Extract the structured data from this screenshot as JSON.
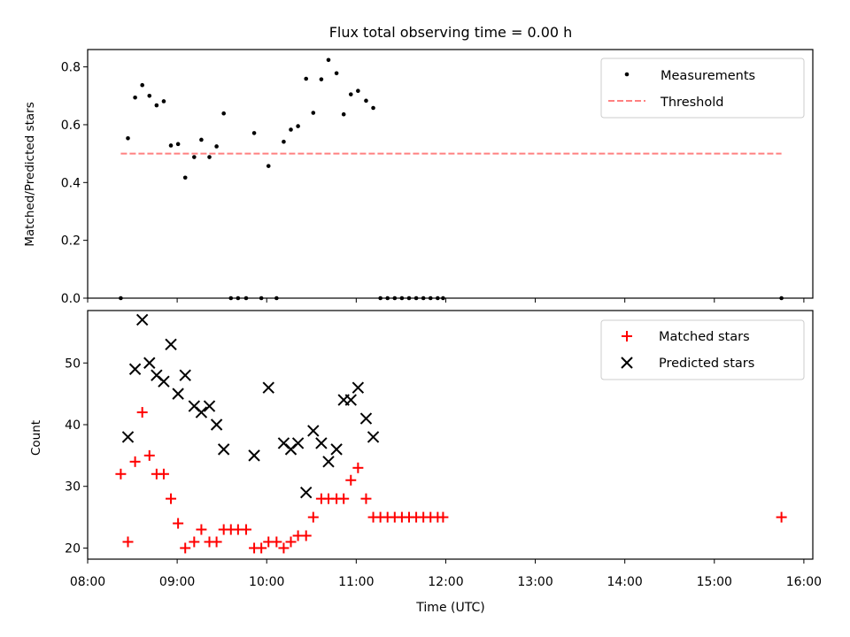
{
  "chart_data": [
    {
      "type": "scatter",
      "title": "Flux total observing time = 0.00 h",
      "xlabel": "",
      "ylabel": "Matched/Predicted stars",
      "x_unit": "hours (UTC)",
      "xlim": [
        8.0,
        16.1
      ],
      "ylim": [
        0.0,
        0.86
      ],
      "yticks": [
        0.0,
        0.2,
        0.4,
        0.6,
        0.8
      ],
      "ytick_labels": [
        "0.0",
        "0.2",
        "0.4",
        "0.6",
        "0.8"
      ],
      "legend_position": "top-right",
      "series": [
        {
          "name": "Measurements",
          "marker": "dot",
          "color": "#000000",
          "points": [
            [
              8.37,
              0.0
            ],
            [
              8.45,
              0.553
            ],
            [
              8.53,
              0.694
            ],
            [
              8.61,
              0.737
            ],
            [
              8.69,
              0.7
            ],
            [
              8.77,
              0.667
            ],
            [
              8.85,
              0.681
            ],
            [
              8.93,
              0.528
            ],
            [
              9.01,
              0.533
            ],
            [
              9.09,
              0.417
            ],
            [
              9.19,
              0.488
            ],
            [
              9.27,
              0.548
            ],
            [
              9.36,
              0.488
            ],
            [
              9.44,
              0.525
            ],
            [
              9.52,
              0.639
            ],
            [
              9.6,
              0.0
            ],
            [
              9.68,
              0.0
            ],
            [
              9.77,
              0.0
            ],
            [
              9.86,
              0.571
            ],
            [
              9.94,
              0.0
            ],
            [
              10.02,
              0.457
            ],
            [
              10.11,
              0.0
            ],
            [
              10.19,
              0.541
            ],
            [
              10.27,
              0.583
            ],
            [
              10.35,
              0.595
            ],
            [
              10.44,
              0.759
            ],
            [
              10.52,
              0.641
            ],
            [
              10.61,
              0.757
            ],
            [
              10.69,
              0.824
            ],
            [
              10.78,
              0.778
            ],
            [
              10.86,
              0.636
            ],
            [
              10.94,
              0.705
            ],
            [
              11.02,
              0.717
            ],
            [
              11.11,
              0.683
            ],
            [
              11.19,
              0.658
            ],
            [
              11.27,
              0.0
            ],
            [
              11.35,
              0.0
            ],
            [
              11.43,
              0.0
            ],
            [
              11.51,
              0.0
            ],
            [
              11.59,
              0.0
            ],
            [
              11.67,
              0.0
            ],
            [
              11.75,
              0.0
            ],
            [
              11.83,
              0.0
            ],
            [
              11.91,
              0.0
            ],
            [
              11.97,
              0.0
            ],
            [
              15.75,
              0.0
            ]
          ]
        },
        {
          "name": "Threshold",
          "line": "dashed",
          "color": "#ff8080",
          "points": [
            [
              8.37,
              0.5
            ],
            [
              15.75,
              0.5
            ]
          ]
        }
      ]
    },
    {
      "type": "scatter",
      "title": "",
      "xlabel": "Time (UTC)",
      "ylabel": "Count",
      "x_unit": "hours (UTC)",
      "xlim": [
        8.0,
        16.1
      ],
      "ylim": [
        18.2,
        58.5
      ],
      "yticks": [
        20,
        30,
        40,
        50
      ],
      "ytick_labels": [
        "20",
        "30",
        "40",
        "50"
      ],
      "xticks": [
        8,
        9,
        10,
        11,
        12,
        13,
        14,
        15,
        16
      ],
      "xtick_labels": [
        "08:00",
        "09:00",
        "10:00",
        "11:00",
        "12:00",
        "13:00",
        "14:00",
        "15:00",
        "16:00"
      ],
      "legend_position": "top-right",
      "series": [
        {
          "name": "Matched stars",
          "marker": "plus",
          "color": "#ff0000",
          "points": [
            [
              8.37,
              32
            ],
            [
              8.45,
              21
            ],
            [
              8.53,
              34
            ],
            [
              8.61,
              42
            ],
            [
              8.69,
              35
            ],
            [
              8.77,
              32
            ],
            [
              8.85,
              32
            ],
            [
              8.93,
              28
            ],
            [
              9.01,
              24
            ],
            [
              9.09,
              20
            ],
            [
              9.19,
              21
            ],
            [
              9.27,
              23
            ],
            [
              9.36,
              21
            ],
            [
              9.44,
              21
            ],
            [
              9.52,
              23
            ],
            [
              9.6,
              23
            ],
            [
              9.68,
              23
            ],
            [
              9.77,
              23
            ],
            [
              9.86,
              20
            ],
            [
              9.94,
              20
            ],
            [
              10.02,
              21
            ],
            [
              10.11,
              21
            ],
            [
              10.19,
              20
            ],
            [
              10.27,
              21
            ],
            [
              10.35,
              22
            ],
            [
              10.44,
              22
            ],
            [
              10.52,
              25
            ],
            [
              10.61,
              28
            ],
            [
              10.69,
              28
            ],
            [
              10.78,
              28
            ],
            [
              10.86,
              28
            ],
            [
              10.94,
              31
            ],
            [
              11.02,
              33
            ],
            [
              11.11,
              28
            ],
            [
              11.19,
              25
            ],
            [
              11.27,
              25
            ],
            [
              11.35,
              25
            ],
            [
              11.43,
              25
            ],
            [
              11.51,
              25
            ],
            [
              11.59,
              25
            ],
            [
              11.67,
              25
            ],
            [
              11.75,
              25
            ],
            [
              11.83,
              25
            ],
            [
              11.91,
              25
            ],
            [
              11.97,
              25
            ],
            [
              15.75,
              25
            ]
          ]
        },
        {
          "name": "Predicted stars",
          "marker": "x",
          "color": "#000000",
          "points": [
            [
              8.45,
              38
            ],
            [
              8.53,
              49
            ],
            [
              8.61,
              57
            ],
            [
              8.69,
              50
            ],
            [
              8.77,
              48
            ],
            [
              8.85,
              47
            ],
            [
              8.93,
              53
            ],
            [
              9.01,
              45
            ],
            [
              9.09,
              48
            ],
            [
              9.19,
              43
            ],
            [
              9.27,
              42
            ],
            [
              9.36,
              43
            ],
            [
              9.44,
              40
            ],
            [
              9.52,
              36
            ],
            [
              9.86,
              35
            ],
            [
              10.02,
              46
            ],
            [
              10.19,
              37
            ],
            [
              10.27,
              36
            ],
            [
              10.35,
              37
            ],
            [
              10.44,
              29
            ],
            [
              10.52,
              39
            ],
            [
              10.61,
              37
            ],
            [
              10.69,
              34
            ],
            [
              10.78,
              36
            ],
            [
              10.86,
              44
            ],
            [
              10.94,
              44
            ],
            [
              11.02,
              46
            ],
            [
              11.11,
              41
            ],
            [
              11.19,
              38
            ]
          ]
        }
      ]
    }
  ],
  "colors": {
    "axis": "#000000",
    "threshold": "#ff8080",
    "matched": "#ff0000",
    "predicted": "#000000"
  }
}
